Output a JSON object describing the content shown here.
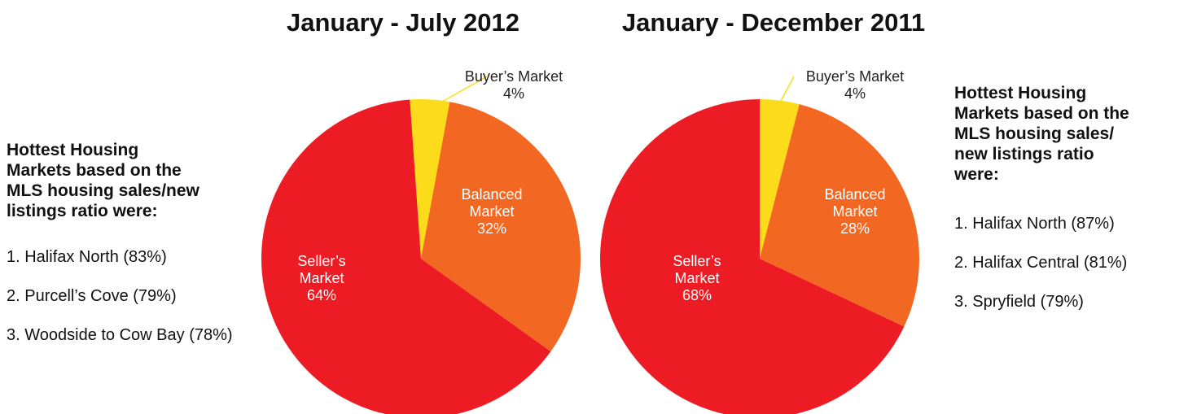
{
  "chart_data": [
    {
      "type": "pie",
      "title": "January - July 2012",
      "categories": [
        "Buyer’s Market",
        "Balanced Market",
        "Seller’s Market"
      ],
      "values": [
        4,
        32,
        64
      ],
      "value_labels": [
        "4%",
        "32%",
        "64%"
      ],
      "colors": [
        "#fcdc1a",
        "#f26722",
        "#ed1c24"
      ]
    },
    {
      "type": "pie",
      "title": "January - December 2011",
      "categories": [
        "Buyer’s Market",
        "Balanced Market",
        "Seller’s Market"
      ],
      "values": [
        4,
        28,
        68
      ],
      "value_labels": [
        "4%",
        "28%",
        "68%"
      ],
      "colors": [
        "#fcdc1a",
        "#f26722",
        "#ed1c24"
      ]
    }
  ],
  "left_panel": {
    "heading": [
      "Hottest Housing",
      "Markets based on the",
      "MLS housing sales/new",
      "listings ratio were:"
    ],
    "items": [
      "1. Halifax North (83%)",
      "2. Purcell’s Cove (79%)",
      "3. Woodside to Cow Bay (78%)"
    ]
  },
  "right_panel": {
    "heading": [
      "Hottest Housing",
      "Markets based on the",
      "MLS housing sales/",
      "new listings ratio",
      "were:"
    ],
    "items": [
      "1. Halifax North (87%)",
      "2. Halifax Central (81%)",
      "3. Spryfield (79%)"
    ]
  }
}
